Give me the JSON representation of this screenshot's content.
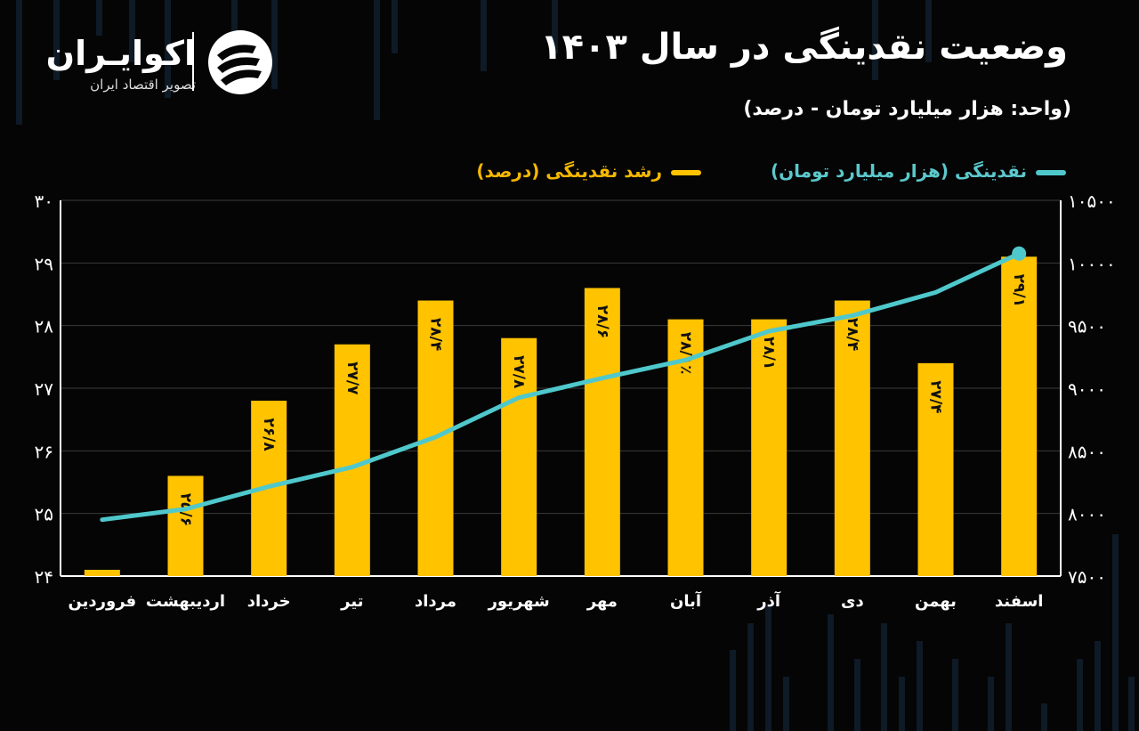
{
  "title": "وضعیت نقدینگی در سال ۱۴۰۳",
  "unit_note": "(واحد: هزار میلیارد تومان - درصد)",
  "logo": {
    "name": "اکوایـران",
    "tagline": "تصویر اقتصاد ایران"
  },
  "colors": {
    "bar": "#ffc300",
    "line": "#4fc8cc",
    "grid": "#3a3a3a",
    "axis": "#ffffff",
    "background": "#050505"
  },
  "chart_data": {
    "type": "bar",
    "categories": [
      "فروردین",
      "اردیبهشت",
      "خرداد",
      "تیر",
      "مرداد",
      "شهریور",
      "مهر",
      "آبان",
      "آذر",
      "دی",
      "بهمن",
      "اسفند"
    ],
    "series": [
      {
        "name": "رشد نقدینگی (درصد)",
        "type": "bar",
        "axis": "left",
        "values": [
          24.1,
          25.6,
          26.8,
          27.7,
          28.4,
          27.8,
          28.6,
          28.1,
          28.1,
          28.4,
          27.4,
          29.1
        ],
        "labels": [
          "",
          "۲۵/۶",
          "۲۶/۸",
          "۲۷/۷",
          "۲۸/۴",
          "۲۷/۸",
          "۲۸/۶",
          "۲۸/۱٪",
          "۲۸/۱",
          "۲۸/۴",
          "۲۷/۴",
          "۲۹/۱"
        ]
      },
      {
        "name": "نقدینگی (هزار میلیارد تومان)",
        "type": "line",
        "axis": "right",
        "values": [
          7950,
          8035,
          8215,
          8370,
          8610,
          8925,
          9080,
          9225,
          9455,
          9580,
          9765,
          10075
        ]
      }
    ],
    "y_left": {
      "min": 24,
      "max": 30,
      "ticks": [
        "۲۴",
        "۲۵",
        "۲۶",
        "۲۷",
        "۲۸",
        "۲۹",
        "۳۰"
      ]
    },
    "y_right": {
      "min": 7500,
      "max": 10500,
      "ticks": [
        "۷۵۰۰",
        "۸۰۰۰",
        "۸۵۰۰",
        "۹۰۰۰",
        "۹۵۰۰",
        "۱۰۰۰۰",
        "۱۰۵۰۰"
      ]
    },
    "grid": true,
    "legend_position": "top"
  }
}
